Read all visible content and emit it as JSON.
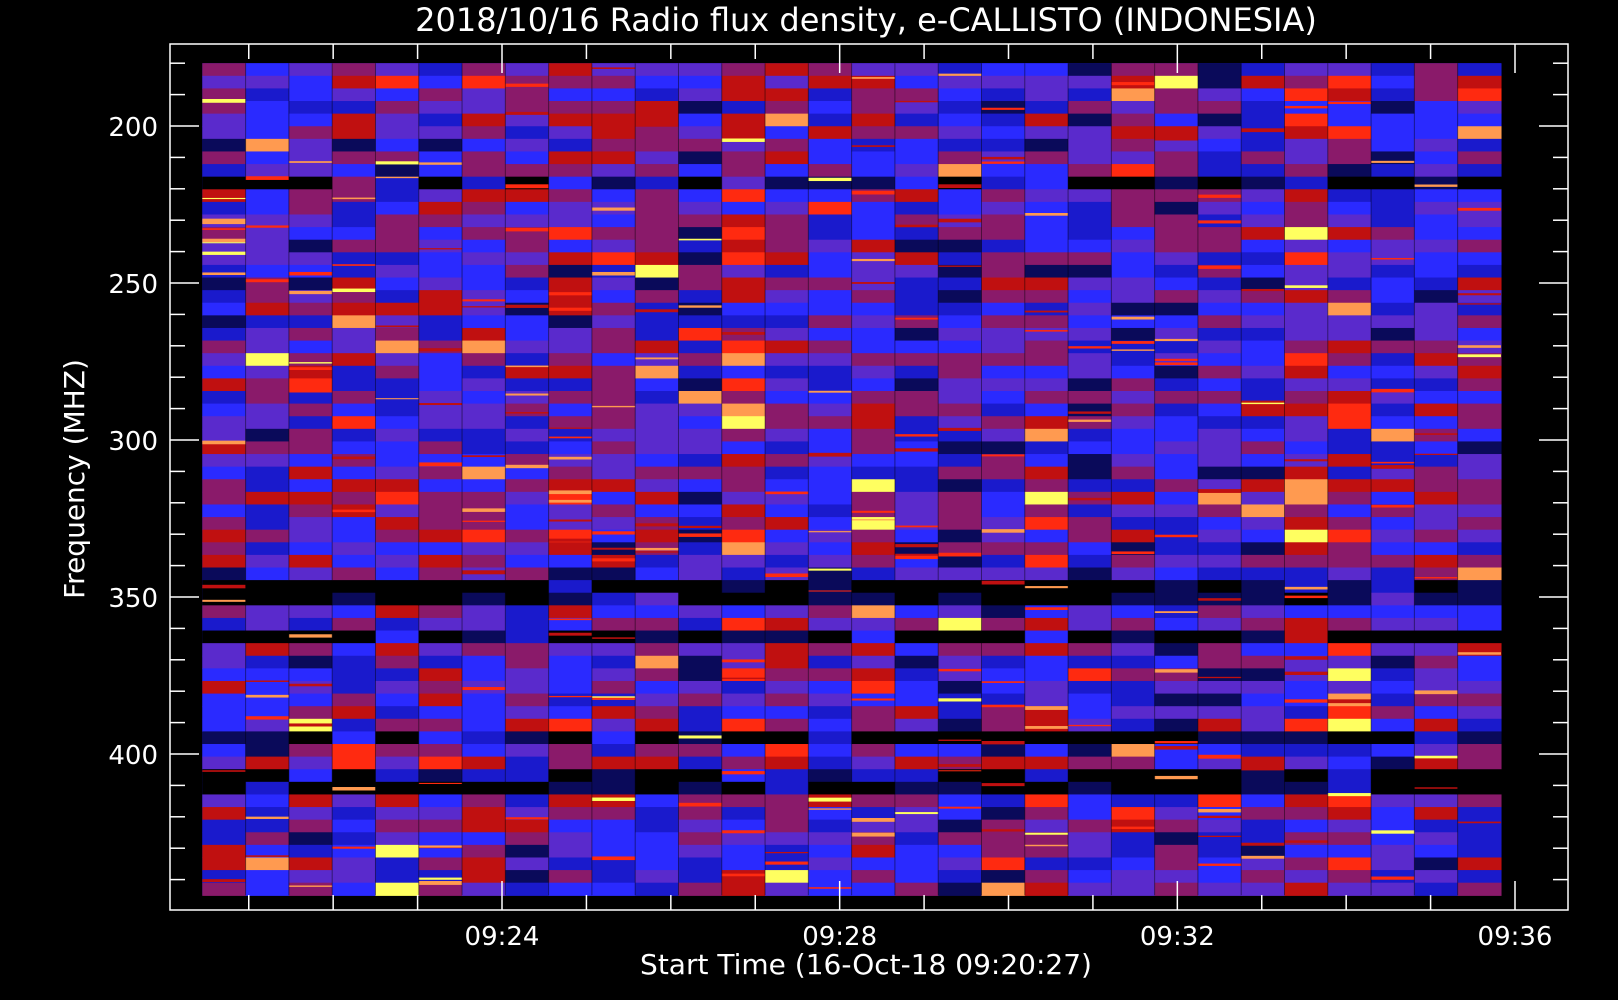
{
  "chart_data": {
    "type": "heatmap",
    "title": "2018/10/16  Radio flux density, e-CALLISTO (INDONESIA)",
    "xlabel": "Start Time (16-Oct-18 09:20:27)",
    "ylabel": "Frequency (MHZ)",
    "x_ticks": [
      "09:24",
      "09:28",
      "09:32",
      "09:36"
    ],
    "y_ticks": [
      "200",
      "250",
      "300",
      "350",
      "400"
    ],
    "y_axis": {
      "range_mhz": [
        180,
        445
      ],
      "inverted": true,
      "major_step": 50,
      "minor_step": 10
    },
    "x_axis": {
      "range_minutes": [
        "09:20:27",
        "09:36:00"
      ],
      "major_step_minutes": 4,
      "minor_step_minutes": 1
    },
    "data_range": {
      "start_time": "09:20:27",
      "end_time": "09:35:50",
      "freq_mhz": [
        180,
        445
      ]
    },
    "colormap": [
      "#000000",
      "#0a0a5a",
      "#1a1acc",
      "#2a2aff",
      "#5a2acc",
      "#8a1a6a",
      "#c01010",
      "#ff2a10",
      "#ff9a50",
      "#ffff60"
    ],
    "background_color": "#000000",
    "axis_color": "#ffffff"
  }
}
